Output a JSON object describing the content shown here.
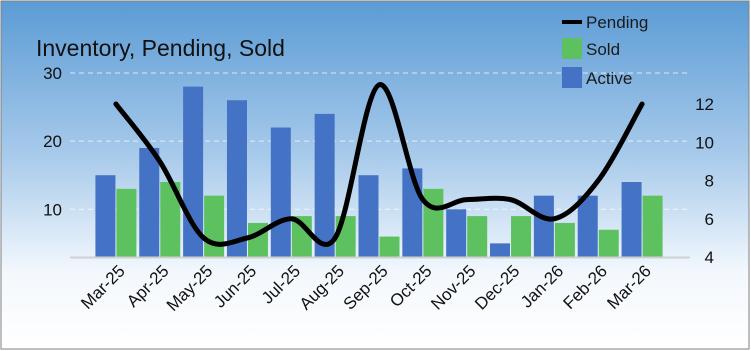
{
  "chart_data": {
    "type": "bar",
    "title": "Inventory, Pending, Sold",
    "categories": [
      "Mar-25",
      "Apr-25",
      "May-25",
      "Jun-25",
      "Jul-25",
      "Aug-25",
      "Sep-25",
      "Oct-25",
      "Nov-25",
      "Dec-25",
      "Jan-26",
      "Feb-26",
      "Mar-26"
    ],
    "series": [
      {
        "name": "Active",
        "type": "bar",
        "axis": "left",
        "color": "#4472C4",
        "values": [
          15,
          19,
          28,
          26,
          22,
          24,
          15,
          16,
          10,
          5,
          12,
          12,
          14
        ]
      },
      {
        "name": "Sold",
        "type": "bar",
        "axis": "left",
        "color": "#5DC160",
        "values": [
          13,
          14,
          12,
          8,
          9,
          9,
          6,
          13,
          9,
          9,
          8,
          7,
          12
        ]
      },
      {
        "name": "Pending",
        "type": "line",
        "axis": "right",
        "color": "#000000",
        "smooth": true,
        "values": [
          12,
          9,
          5,
          5,
          6,
          5,
          13,
          7,
          7,
          7,
          6,
          8,
          12
        ]
      }
    ],
    "y_left": {
      "ticks": [
        10,
        20,
        30
      ],
      "range": [
        3,
        30
      ]
    },
    "y_right": {
      "ticks": [
        4,
        6,
        8,
        10,
        12
      ],
      "range": [
        4,
        12
      ]
    },
    "legend": {
      "position": "top-right",
      "order": [
        "Pending",
        "Sold",
        "Active"
      ]
    },
    "grid": true,
    "background": {
      "top": "#5B9BD5",
      "bottom": "#FFFFFF"
    }
  }
}
